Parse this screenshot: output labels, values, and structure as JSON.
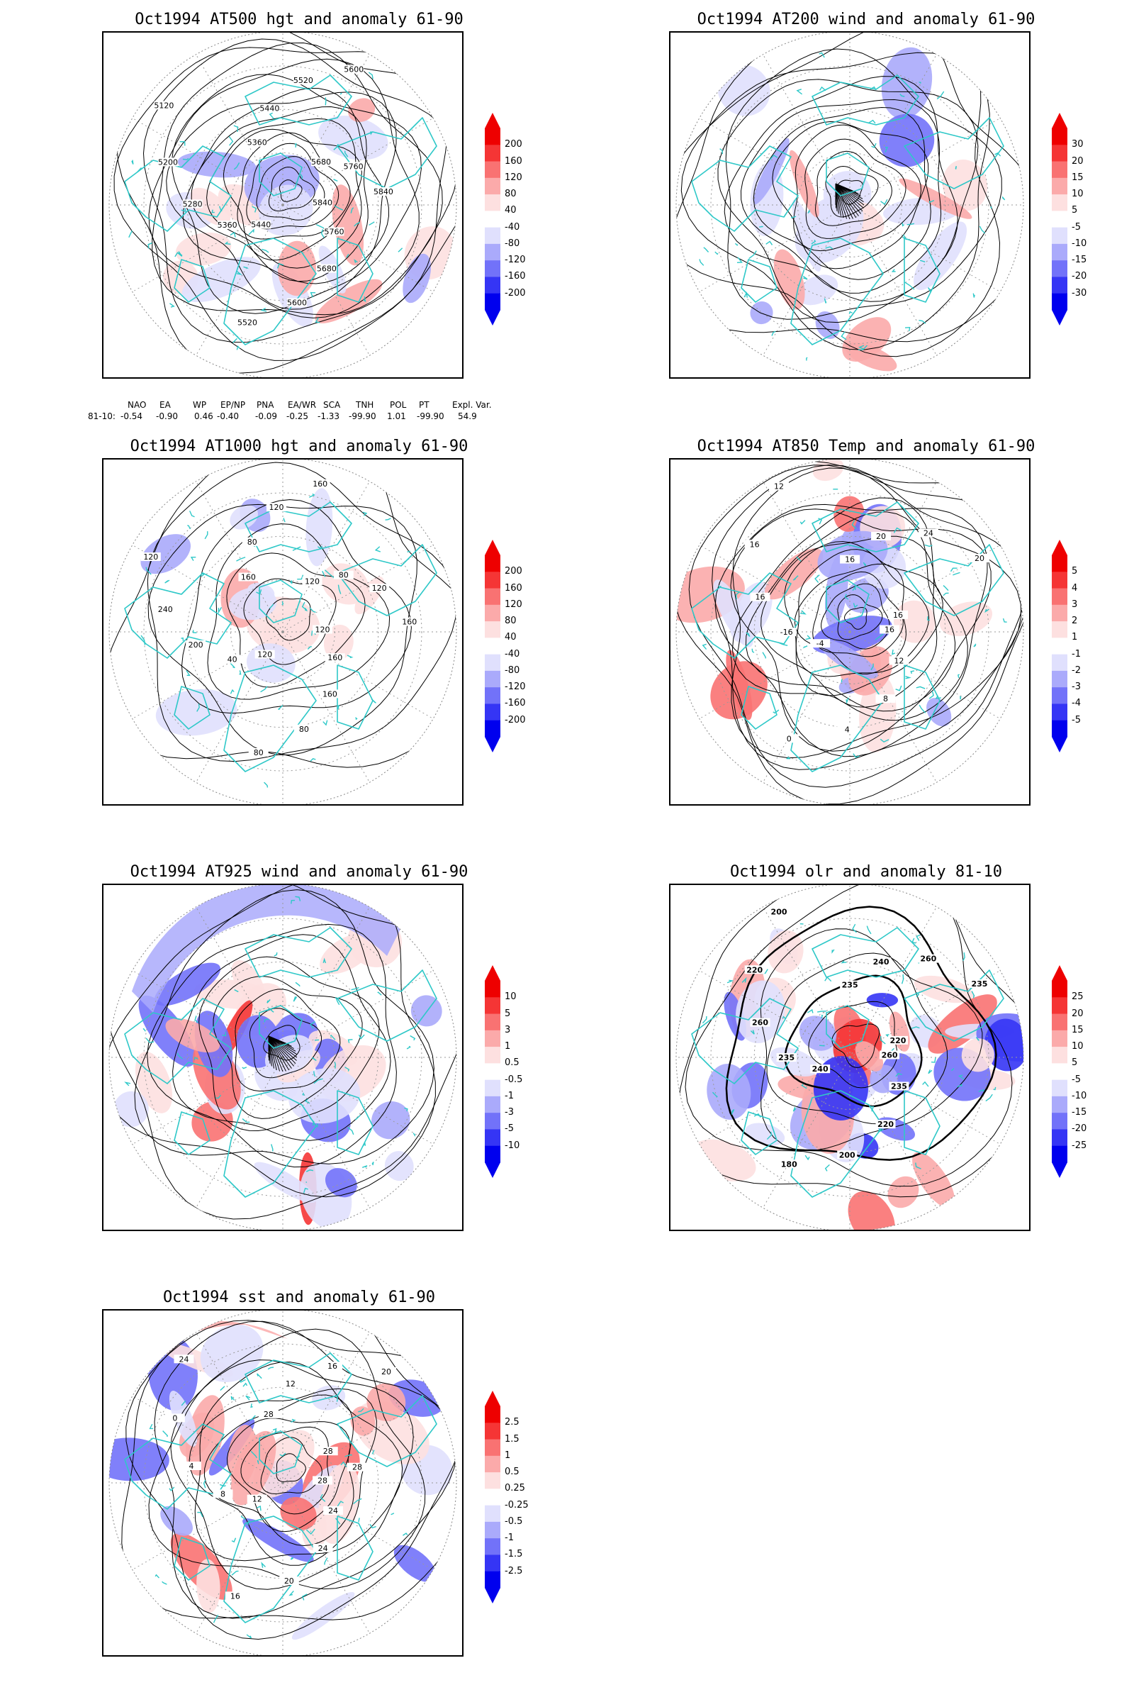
{
  "panels": [
    {
      "title": "Oct1994 AT500 hgt and anomaly 61-90",
      "legend_labels": [
        "200",
        "160",
        "120",
        "80",
        "40",
        "-40",
        "-80",
        "-120",
        "-160",
        "-200"
      ],
      "contour_labels": [
        "5840",
        "5760",
        "5680",
        "5600",
        "5520",
        "5440",
        "5360",
        "5280",
        "5200",
        "5120",
        "5360",
        "5440",
        "5520",
        "5600",
        "5680",
        "5760",
        "5840"
      ]
    },
    {
      "title": "Oct1994 AT200 wind and anomaly 61-90",
      "legend_labels": [
        "30",
        "20",
        "15",
        "10",
        "5",
        "-5",
        "-10",
        "-15",
        "-20",
        "-30"
      ]
    },
    {
      "title": "Oct1994 AT1000 hgt and anomaly 61-90",
      "legend_labels": [
        "200",
        "160",
        "120",
        "80",
        "40",
        "-40",
        "-80",
        "-120",
        "-160",
        "-200"
      ],
      "contour_labels": [
        "120",
        "160",
        "160",
        "80",
        "80",
        "120",
        "40",
        "200",
        "240",
        "120",
        "160",
        "80",
        "120",
        "160",
        "120",
        "80",
        "120",
        "160"
      ]
    },
    {
      "title": "Oct1994 AT850 Temp and anomaly 61-90",
      "legend_labels": [
        "5",
        "4",
        "3",
        "2",
        "1",
        "-1",
        "-2",
        "-3",
        "-4",
        "-5"
      ],
      "contour_labels": [
        "16",
        "12",
        "8",
        "4",
        "0",
        "-4",
        "-16",
        "16",
        "16",
        "12",
        "16",
        "20",
        "24",
        "20",
        "16"
      ]
    },
    {
      "title": "Oct1994 AT925 wind and anomaly 61-90",
      "legend_labels": [
        "10",
        "5",
        "3",
        "1",
        "0.5",
        "-0.5",
        "-1",
        "-3",
        "-5",
        "-10"
      ]
    },
    {
      "title": "Oct1994 olr and anomaly 81-10",
      "legend_labels": [
        "25",
        "20",
        "15",
        "10",
        "5",
        "-5",
        "-10",
        "-15",
        "-20",
        "-25"
      ],
      "contour_labels": [
        "260",
        "235",
        "220",
        "200",
        "180",
        "240",
        "235",
        "260",
        "220",
        "200",
        "235",
        "240",
        "260",
        "235",
        "220"
      ]
    },
    {
      "title": "Oct1994 sst and anomaly 61-90",
      "legend_labels": [
        "2.5",
        "1.5",
        "1",
        "0.5",
        "0.25",
        "-0.25",
        "-0.5",
        "-1",
        "-1.5",
        "-2.5"
      ],
      "contour_labels": [
        "28",
        "24",
        "24",
        "20",
        "16",
        "12",
        "8",
        "4",
        "0",
        "24",
        "28",
        "12",
        "16",
        "20",
        "28",
        "28"
      ]
    }
  ],
  "indices": {
    "headers": [
      "NAO",
      "EA",
      "WP",
      "EP/NP",
      "PNA",
      "EA/WR",
      "SCA",
      "TNH",
      "POL",
      "PT",
      "Expl. Var."
    ],
    "row_label": "81-10:",
    "values": [
      "-0.54",
      "-0.90",
      "0.46",
      "-0.40",
      "-0.09",
      "-0.25",
      "-1.33",
      "-99.90",
      "1.01",
      "-99.90",
      "54.9"
    ]
  },
  "colors": {
    "land_outline": "#2ec8c8",
    "contour": "#000000",
    "legend_colors": [
      "#ee0000",
      "#f53535",
      "#f97272",
      "#fbaaaa",
      "#fde0e0",
      "#ffffff",
      "#e0e0fd",
      "#aaaafb",
      "#7272f9",
      "#3535f5",
      "#0000ee"
    ]
  }
}
